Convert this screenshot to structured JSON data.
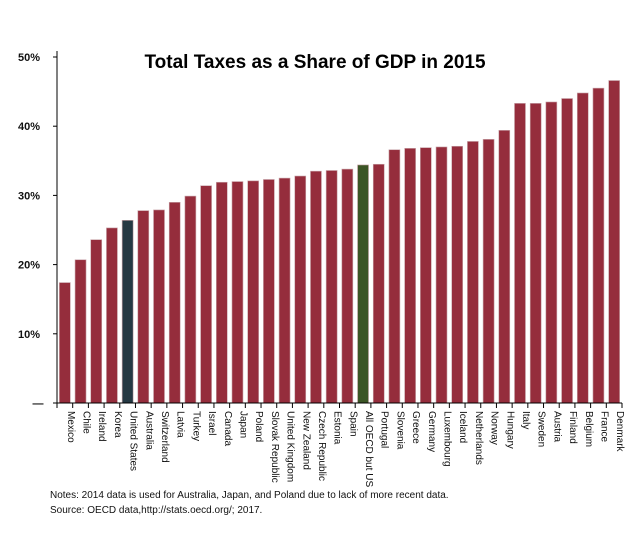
{
  "chart_data": {
    "type": "bar",
    "title": "Total Taxes as a Share of GDP in 2015",
    "xlabel": "",
    "ylabel": "",
    "ylim": [
      0,
      50
    ],
    "yticks": [
      0,
      10,
      20,
      30,
      40,
      50
    ],
    "ytick_labels": [
      "—",
      "10%",
      "20%",
      "30%",
      "40%",
      "50%"
    ],
    "grid": false,
    "categories": [
      "Mexico",
      "Chile",
      "Ireland",
      "Korea",
      "United States",
      "Australia",
      "Switzerland",
      "Latvia",
      "Turkey",
      "Israel",
      "Canada",
      "Japan",
      "Poland",
      "Slovak Republic",
      "United Kingdom",
      "New Zealand",
      "Czech Republic",
      "Estonia",
      "Spain",
      "All OECD but US",
      "Portugal",
      "Slovenia",
      "Greece",
      "Germany",
      "Luxembourg",
      "Iceland",
      "Netherlands",
      "Norway",
      "Hungary",
      "Italy",
      "Sweden",
      "Austria",
      "Finland",
      "Belgium",
      "France",
      "Denmark"
    ],
    "values": [
      17.4,
      20.7,
      23.6,
      25.3,
      26.4,
      27.8,
      27.9,
      29.0,
      29.9,
      31.4,
      31.9,
      32.0,
      32.1,
      32.3,
      32.5,
      32.8,
      33.5,
      33.6,
      33.8,
      34.4,
      34.5,
      36.6,
      36.8,
      36.9,
      37.0,
      37.1,
      37.8,
      38.1,
      39.4,
      43.3,
      43.3,
      43.5,
      44.0,
      44.8,
      45.5,
      46.6
    ],
    "colors": {
      "default": "#952d3c",
      "United States": "#253943",
      "All OECD but US": "#3b5525"
    }
  },
  "notes": {
    "line1": "Notes: 2014 data is used for Australia, Japan, and Poland due to lack of more recent data.",
    "line2": "Source: OECD data,http://stats.oecd.org/; 2017."
  }
}
